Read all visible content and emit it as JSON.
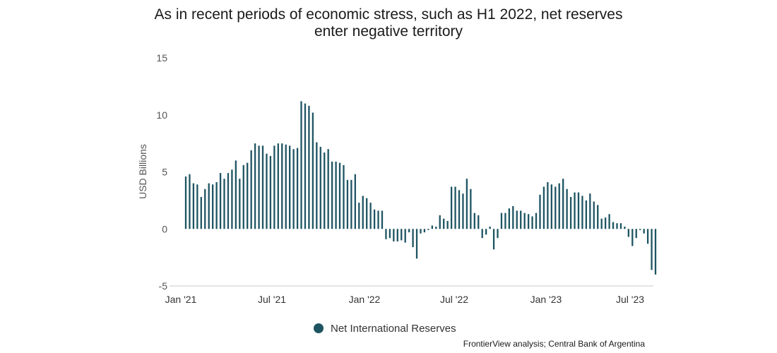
{
  "chart_data": {
    "type": "bar",
    "title": "As in recent periods of economic stress, such as H1 2022, net reserves",
    "title_line2": "enter negative territory",
    "ylabel": "USD Billions",
    "xlabel": "",
    "ylim": [
      -5,
      15
    ],
    "yticks": [
      "15",
      "10",
      "5",
      "0",
      "-5"
    ],
    "xticks": [
      "Jan '21",
      "Jul '21",
      "Jan '22",
      "Jul '22",
      "Jan '23",
      "Jul '23"
    ],
    "grid": false,
    "legend_position": "bottom-center",
    "series": [
      {
        "name": "Net International Reserves",
        "color": "#1e5462",
        "values": [
          4.6,
          4.8,
          4.0,
          3.9,
          2.8,
          3.5,
          4.0,
          3.9,
          4.1,
          4.9,
          4.4,
          4.9,
          5.2,
          6.0,
          4.4,
          5.6,
          5.8,
          6.9,
          7.5,
          7.3,
          7.3,
          6.6,
          6.4,
          7.3,
          7.5,
          7.5,
          7.4,
          7.3,
          7.0,
          7.1,
          11.2,
          11.0,
          10.8,
          10.2,
          7.6,
          7.2,
          6.7,
          7.0,
          5.9,
          5.9,
          5.8,
          5.6,
          4.3,
          4.3,
          4.8,
          2.3,
          2.9,
          2.7,
          2.3,
          1.7,
          1.6,
          1.6,
          -0.9,
          -0.8,
          -1.1,
          -1.1,
          -1.0,
          -1.2,
          -0.3,
          -1.6,
          -2.6,
          -0.4,
          -0.3,
          -0.1,
          0.3,
          0.2,
          1.2,
          0.9,
          0.7,
          3.7,
          3.7,
          3.4,
          3.1,
          4.4,
          3.5,
          1.4,
          1.2,
          -0.8,
          -0.5,
          0.2,
          -1.8,
          -0.8,
          1.4,
          1.4,
          1.8,
          2.0,
          1.6,
          1.6,
          1.4,
          1.3,
          1.1,
          1.4,
          3.0,
          3.7,
          4.1,
          3.9,
          3.7,
          4.0,
          4.4,
          3.5,
          2.8,
          3.2,
          3.2,
          2.9,
          2.5,
          3.1,
          2.4,
          2.1,
          0.9,
          1.0,
          1.3,
          0.6,
          0.5,
          0.5,
          0.2,
          -0.7,
          -1.5,
          -0.8,
          -0.1,
          -0.4,
          -1.3,
          -3.6,
          -4.0
        ]
      }
    ]
  },
  "source_text": "FrontierView analysis; Central Bank of Argentina"
}
